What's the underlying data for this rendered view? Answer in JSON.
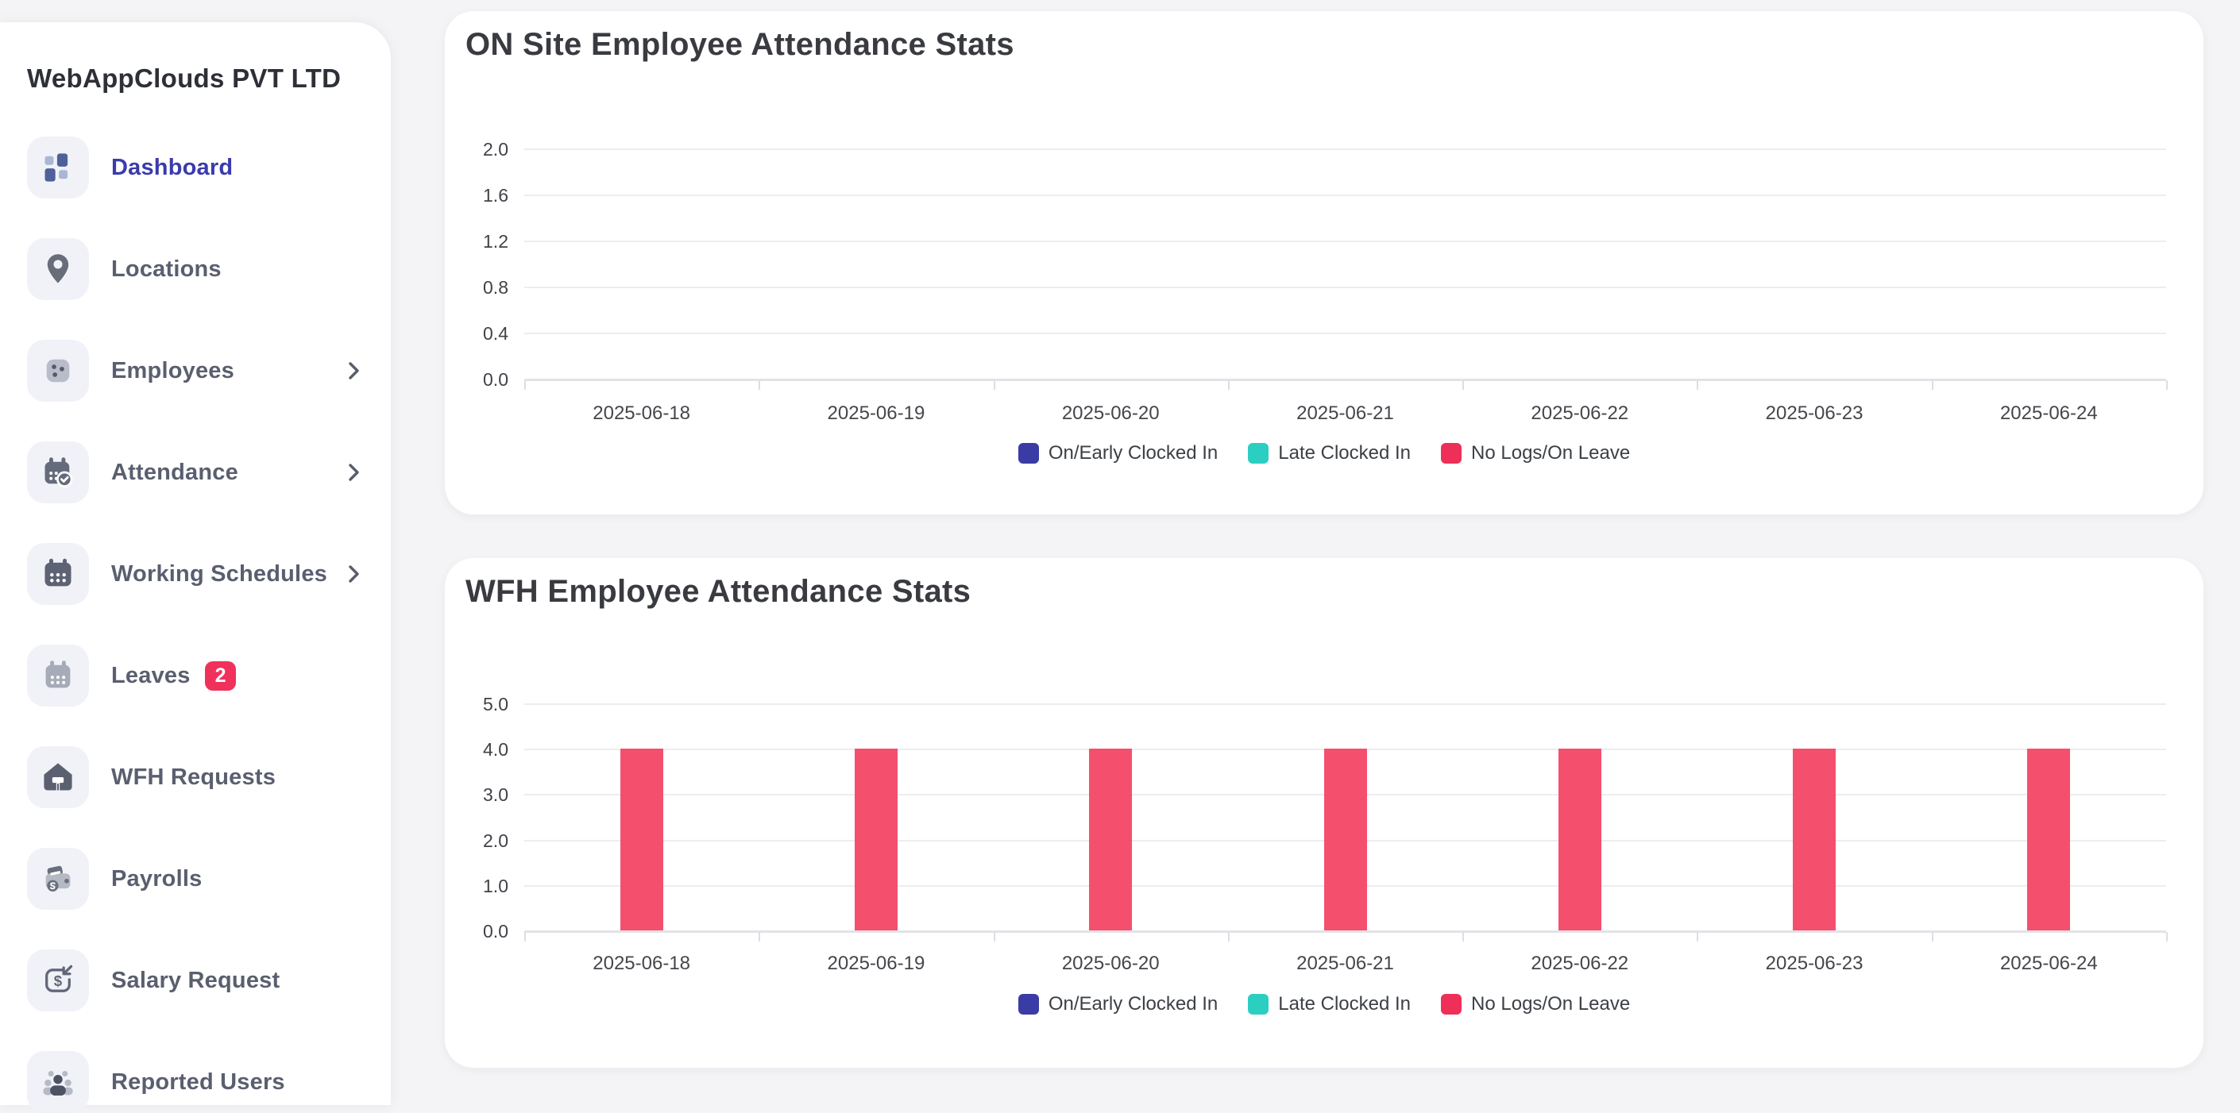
{
  "app": {
    "company_name": "WebAppClouds PVT LTD"
  },
  "theme": {
    "page_bg": "#f4f4f6",
    "card_bg": "#ffffff",
    "active_color": "#3a3bac",
    "badge_color": "#f0315b",
    "sidebar_text": "#5a5f6f",
    "icon_tile_bg": "#f1f2f8"
  },
  "sidebar": {
    "items": [
      {
        "label": "Dashboard",
        "icon": "dashboard-icon",
        "active": true,
        "has_submenu": false,
        "badge": null
      },
      {
        "label": "Locations",
        "icon": "map-pin-icon",
        "active": false,
        "has_submenu": false,
        "badge": null
      },
      {
        "label": "Employees",
        "icon": "employees-icon",
        "active": false,
        "has_submenu": true,
        "badge": null
      },
      {
        "label": "Attendance",
        "icon": "attendance-icon",
        "active": false,
        "has_submenu": true,
        "badge": null
      },
      {
        "label": "Working Schedules",
        "icon": "schedule-icon",
        "active": false,
        "has_submenu": true,
        "badge": null
      },
      {
        "label": "Leaves",
        "icon": "leaves-icon",
        "active": false,
        "has_submenu": false,
        "badge": "2"
      },
      {
        "label": "WFH Requests",
        "icon": "home-icon",
        "active": false,
        "has_submenu": false,
        "badge": null
      },
      {
        "label": "Payrolls",
        "icon": "wallet-icon",
        "active": false,
        "has_submenu": false,
        "badge": null
      },
      {
        "label": "Salary Request",
        "icon": "salary-icon",
        "active": false,
        "has_submenu": false,
        "badge": null
      },
      {
        "label": "Reported Users",
        "icon": "users-icon",
        "active": false,
        "has_submenu": false,
        "badge": null
      }
    ]
  },
  "chart_data": [
    {
      "type": "bar",
      "title": "ON Site Employee Attendance Stats",
      "categories": [
        "2025-06-18",
        "2025-06-19",
        "2025-06-20",
        "2025-06-21",
        "2025-06-22",
        "2025-06-23",
        "2025-06-24"
      ],
      "series": [
        {
          "name": "On/Early Clocked In",
          "legend_color": "#3b3ba5",
          "bar_color": "#3b3ba5",
          "values": [
            0,
            0,
            0,
            0,
            0,
            0,
            0
          ]
        },
        {
          "name": "Late Clocked In",
          "legend_color": "#2bcfc2",
          "bar_color": "#2bcfc2",
          "values": [
            0,
            0,
            0,
            0,
            0,
            0,
            0
          ]
        },
        {
          "name": "No Logs/On Leave",
          "legend_color": "#ee2f57",
          "bar_color": "#f4506e",
          "values": [
            0,
            0,
            0,
            0,
            0,
            0,
            0
          ]
        }
      ],
      "ylim": [
        0,
        2
      ],
      "yticks": [
        0.0,
        0.4,
        0.8,
        1.2,
        1.6,
        2.0
      ],
      "xlabel": "",
      "ylabel": "",
      "grid": true,
      "legend_position": "bottom"
    },
    {
      "type": "bar",
      "title": "WFH Employee Attendance Stats",
      "categories": [
        "2025-06-18",
        "2025-06-19",
        "2025-06-20",
        "2025-06-21",
        "2025-06-22",
        "2025-06-23",
        "2025-06-24"
      ],
      "series": [
        {
          "name": "On/Early Clocked In",
          "legend_color": "#3b3ba5",
          "bar_color": "#3b3ba5",
          "values": [
            0,
            0,
            0,
            0,
            0,
            0,
            0
          ]
        },
        {
          "name": "Late Clocked In",
          "legend_color": "#2bcfc2",
          "bar_color": "#2bcfc2",
          "values": [
            0,
            0,
            0,
            0,
            0,
            0,
            0
          ]
        },
        {
          "name": "No Logs/On Leave",
          "legend_color": "#ee2f57",
          "bar_color": "#f4506e",
          "values": [
            4,
            4,
            4,
            4,
            4,
            4,
            4
          ]
        }
      ],
      "ylim": [
        0,
        5
      ],
      "yticks": [
        0.0,
        1.0,
        2.0,
        3.0,
        4.0,
        5.0
      ],
      "xlabel": "",
      "ylabel": "",
      "grid": true,
      "legend_position": "bottom"
    }
  ]
}
